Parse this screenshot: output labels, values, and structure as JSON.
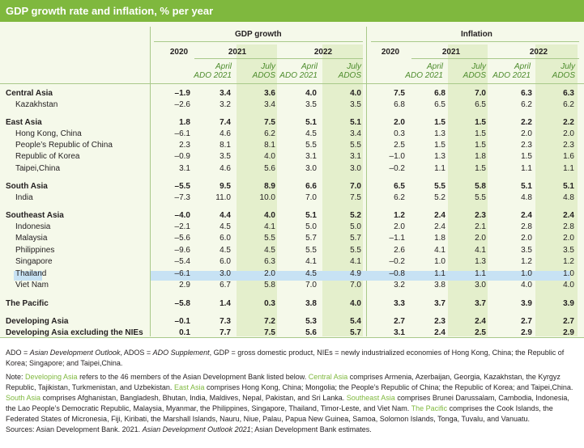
{
  "title": "GDP growth rate and inflation, % per year",
  "groups": {
    "gdp": "GDP growth",
    "inflation": "Inflation"
  },
  "years": {
    "y2020": "2020",
    "y2021": "2021",
    "y2022": "2022"
  },
  "subheads": {
    "april_line1": "April",
    "april_line2": "ADO 2021",
    "july_line1": "July",
    "july_line2": "ADOS"
  },
  "rows": [
    {
      "label": "Central Asia",
      "bold": true,
      "values": [
        "–1.9",
        "3.4",
        "3.6",
        "4.0",
        "4.0",
        "7.5",
        "6.8",
        "7.0",
        "6.3",
        "6.3"
      ]
    },
    {
      "label": "Kazakhstan",
      "bold": false,
      "values": [
        "–2.6",
        "3.2",
        "3.4",
        "3.5",
        "3.5",
        "6.8",
        "6.5",
        "6.5",
        "6.2",
        "6.2"
      ]
    },
    {
      "label": "East Asia",
      "bold": true,
      "values": [
        "1.8",
        "7.4",
        "7.5",
        "5.1",
        "5.1",
        "2.0",
        "1.5",
        "1.5",
        "2.2",
        "2.2"
      ]
    },
    {
      "label": "Hong Kong, China",
      "bold": false,
      "values": [
        "–6.1",
        "4.6",
        "6.2",
        "4.5",
        "3.4",
        "0.3",
        "1.3",
        "1.5",
        "2.0",
        "2.0"
      ]
    },
    {
      "label": "People’s Republic of China",
      "bold": false,
      "values": [
        "2.3",
        "8.1",
        "8.1",
        "5.5",
        "5.5",
        "2.5",
        "1.5",
        "1.5",
        "2.3",
        "2.3"
      ]
    },
    {
      "label": "Republic of Korea",
      "bold": false,
      "values": [
        "–0.9",
        "3.5",
        "4.0",
        "3.1",
        "3.1",
        "–1.0",
        "1.3",
        "1.8",
        "1.5",
        "1.6"
      ]
    },
    {
      "label": "Taipei,China",
      "bold": false,
      "values": [
        "3.1",
        "4.6",
        "5.6",
        "3.0",
        "3.0",
        "–0.2",
        "1.1",
        "1.5",
        "1.1",
        "1.1"
      ]
    },
    {
      "label": "South Asia",
      "bold": true,
      "values": [
        "–5.5",
        "9.5",
        "8.9",
        "6.6",
        "7.0",
        "6.5",
        "5.5",
        "5.8",
        "5.1",
        "5.1"
      ]
    },
    {
      "label": "India",
      "bold": false,
      "values": [
        "–7.3",
        "11.0",
        "10.0",
        "7.0",
        "7.5",
        "6.2",
        "5.2",
        "5.5",
        "4.8",
        "4.8"
      ]
    },
    {
      "label": "Southeast Asia",
      "bold": true,
      "values": [
        "–4.0",
        "4.4",
        "4.0",
        "5.1",
        "5.2",
        "1.2",
        "2.4",
        "2.3",
        "2.4",
        "2.4"
      ]
    },
    {
      "label": "Indonesia",
      "bold": false,
      "values": [
        "–2.1",
        "4.5",
        "4.1",
        "5.0",
        "5.0",
        "2.0",
        "2.4",
        "2.1",
        "2.8",
        "2.8"
      ]
    },
    {
      "label": "Malaysia",
      "bold": false,
      "values": [
        "–5.6",
        "6.0",
        "5.5",
        "5.7",
        "5.7",
        "–1.1",
        "1.8",
        "2.0",
        "2.0",
        "2.0"
      ]
    },
    {
      "label": "Philippines",
      "bold": false,
      "values": [
        "–9.6",
        "4.5",
        "4.5",
        "5.5",
        "5.5",
        "2.6",
        "4.1",
        "4.1",
        "3.5",
        "3.5"
      ]
    },
    {
      "label": "Singapore",
      "bold": false,
      "values": [
        "–5.4",
        "6.0",
        "6.3",
        "4.1",
        "4.1",
        "–0.2",
        "1.0",
        "1.3",
        "1.2",
        "1.2"
      ]
    },
    {
      "label": "Thailand",
      "bold": false,
      "highlight": true,
      "values": [
        "–6.1",
        "3.0",
        "2.0",
        "4.5",
        "4.9",
        "–0.8",
        "1.1",
        "1.1",
        "1.0",
        "1.0"
      ]
    },
    {
      "label": "Viet Nam",
      "bold": false,
      "values": [
        "2.9",
        "6.7",
        "5.8",
        "7.0",
        "7.0",
        "3.2",
        "3.8",
        "3.0",
        "4.0",
        "4.0"
      ]
    },
    {
      "label": "The Pacific",
      "bold": true,
      "values": [
        "–5.8",
        "1.4",
        "0.3",
        "3.8",
        "4.0",
        "3.3",
        "3.7",
        "3.7",
        "3.9",
        "3.9"
      ]
    },
    {
      "label": "Developing Asia",
      "bold": true,
      "values": [
        "–0.1",
        "7.3",
        "7.2",
        "5.3",
        "5.4",
        "2.7",
        "2.3",
        "2.4",
        "2.7",
        "2.7"
      ]
    },
    {
      "label": "Developing Asia excluding the NIEs",
      "bold": true,
      "values": [
        "0.1",
        "7.7",
        "7.5",
        "5.6",
        "5.7",
        "3.1",
        "2.4",
        "2.5",
        "2.9",
        "2.9"
      ]
    }
  ],
  "notes": {
    "abbrev_a": "ADO = ",
    "abbrev_b": "Asian Development Outlook",
    "abbrev_c": ", ADOS = ",
    "abbrev_d": "ADO Supplement",
    "abbrev_e": ", GDP = gross domestic product, NIEs = newly industrialized economies of Hong Kong, China; the Republic of Korea; Singapore; and Taipei,China.",
    "n_prefix": "Note: ",
    "n_dev": "Developing Asia",
    "n_dev_text": " refers to the 46 members of the Asian Development Bank listed below. ",
    "n_ca": "Central Asia",
    "n_ca_text": " comprises Armenia, Azerbaijan, Georgia, Kazakhstan, the Kyrgyz Republic, Tajikistan, Turkmenistan, and Uzbekistan. ",
    "n_ea": "East Asia",
    "n_ea_text": " comprises Hong Kong, China; Mongolia; the People’s Republic of China; the Republic of Korea; and Taipei,China. ",
    "n_sa": "South Asia",
    "n_sa_text": " comprises Afghanistan, Bangladesh, Bhutan, India, Maldives, Nepal, Pakistan, and Sri Lanka. ",
    "n_sea": "Southeast Asia",
    "n_sea_text": " comprises Brunei Darussalam, Cambodia, Indonesia, the Lao People’s Democratic Republic, Malaysia, Myanmar, the Philippines, Singapore, Thailand, Timor-Leste, and Viet Nam. ",
    "n_pac": "The Pacific",
    "n_pac_text": " comprises the Cook Islands, the Federated States of Micronesia, Fiji, Kiribati, the Marshall Islands, Nauru, Niue, Palau, Papua New Guinea, Samoa, Solomon Islands, Tonga, Tuvalu, and Vanuatu.",
    "src_a": "Sources: Asian Development Bank. 2021. ",
    "src_b": "Asian Development Outlook 2021",
    "src_c": "; Asian Development Bank estimates."
  },
  "colors": {
    "brand_green": "#7fb83e",
    "highlight_blue": "#c7e2f4",
    "band": "#e4efcc"
  }
}
